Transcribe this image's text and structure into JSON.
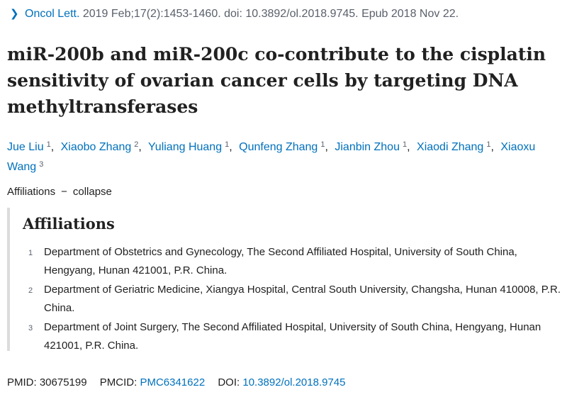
{
  "citation": {
    "chevron_icon": "chevron-right-icon",
    "journal": "Oncol Lett.",
    "details": "2019 Feb;17(2):1453-1460. doi: 10.3892/ol.2018.9745. Epub 2018 Nov 22."
  },
  "title": "miR-200b and miR-200c co-contribute to the cisplatin sensitivity of ovarian cancer cells by targeting DNA methyltransferases",
  "authors": [
    {
      "name": "Jue Liu",
      "aff": "1"
    },
    {
      "name": "Xiaobo Zhang",
      "aff": "2"
    },
    {
      "name": "Yuliang Huang",
      "aff": "1"
    },
    {
      "name": "Qunfeng Zhang",
      "aff": "1"
    },
    {
      "name": "Jianbin Zhou",
      "aff": "1"
    },
    {
      "name": "Xiaodi Zhang",
      "aff": "1"
    },
    {
      "name": "Xiaoxu Wang",
      "aff": "3"
    }
  ],
  "affiliations_toggle": {
    "label": "Affiliations",
    "dash": "−",
    "action": "collapse"
  },
  "affiliations": {
    "heading": "Affiliations",
    "items": [
      {
        "num": "1",
        "text": "Department of Obstetrics and Gynecology, The Second Affiliated Hospital, University of South China, Hengyang, Hunan 421001, P.R. China."
      },
      {
        "num": "2",
        "text": "Department of Geriatric Medicine, Xiangya Hospital, Central South University, Changsha, Hunan 410008, P.R. China."
      },
      {
        "num": "3",
        "text": "Department of Joint Surgery, The Second Affiliated Hospital, University of South China, Hengyang, Hunan 421001, P.R. China."
      }
    ]
  },
  "identifiers": {
    "pmid_label": "PMID:",
    "pmid": "30675199",
    "pmcid_label": "PMCID:",
    "pmcid": "PMC6341622",
    "doi_label": "DOI:",
    "doi": "10.3892/ol.2018.9745"
  },
  "colors": {
    "link": "#0071bc",
    "text": "#212121",
    "muted": "#5b616b",
    "border": "#dcdcdc"
  }
}
